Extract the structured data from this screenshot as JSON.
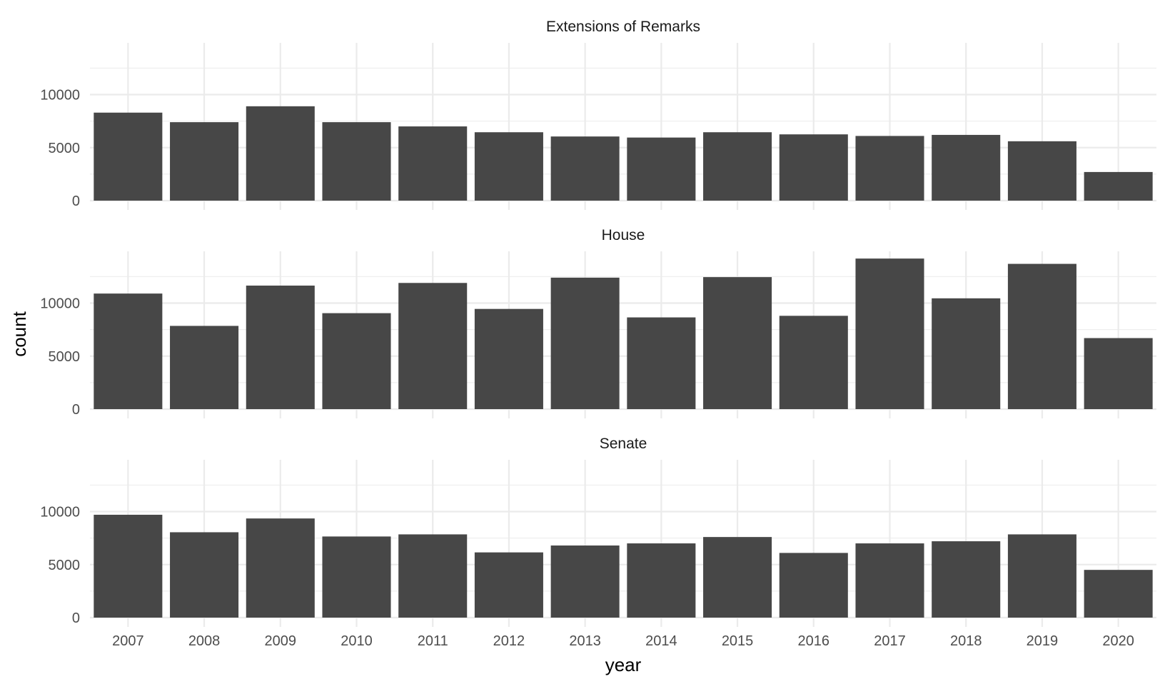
{
  "chart_data": {
    "type": "bar",
    "layout": "faceted, 3 panels stacked vertically, shared x axis",
    "xlabel": "year",
    "ylabel": "count",
    "categories": [
      "2007",
      "2008",
      "2009",
      "2010",
      "2011",
      "2012",
      "2013",
      "2014",
      "2015",
      "2016",
      "2017",
      "2018",
      "2019",
      "2020"
    ],
    "ylim": [
      0,
      14500
    ],
    "yticks": [
      "0",
      "5000",
      "10000"
    ],
    "grid": true,
    "legend": "none",
    "bar_color": "#474747",
    "panels": [
      {
        "name": "Extensions of Remarks",
        "values": [
          8300,
          7400,
          8900,
          7400,
          7000,
          6450,
          6050,
          5950,
          6450,
          6250,
          6100,
          6200,
          5600,
          2700
        ]
      },
      {
        "name": "House",
        "values": [
          10900,
          7850,
          11650,
          9050,
          11900,
          9450,
          12400,
          8650,
          12450,
          8800,
          14200,
          10450,
          13700,
          6700
        ]
      },
      {
        "name": "Senate",
        "values": [
          9700,
          8050,
          9350,
          7650,
          7850,
          6150,
          6800,
          7000,
          7600,
          6100,
          7000,
          7200,
          7850,
          4500
        ]
      }
    ]
  }
}
